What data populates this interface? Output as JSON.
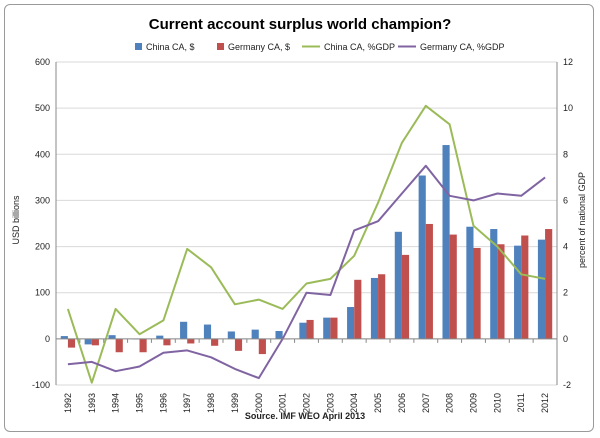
{
  "chart_data": {
    "type": "bar",
    "title": "Current account surplus world champion?",
    "xlabel": "Source. IMF WEO April 2013",
    "ylabel": "USD billions",
    "y2label": "percent of national GDP",
    "ylim": [
      -100,
      600
    ],
    "y2lim": [
      -2,
      12
    ],
    "yticks": [
      -100,
      0,
      100,
      200,
      300,
      400,
      500,
      600
    ],
    "y2ticks": [
      -2,
      0,
      2,
      4,
      6,
      8,
      10,
      12
    ],
    "categories": [
      "1992",
      "1993",
      "1994",
      "1995",
      "1996",
      "1997",
      "1998",
      "1999",
      "2000",
      "2001",
      "2002",
      "2003",
      "2004",
      "2005",
      "2006",
      "2007",
      "2008",
      "2009",
      "2010",
      "2011",
      "2012"
    ],
    "legend_position": "top",
    "bar_series": [
      {
        "name": "China CA, $",
        "color": "#4f81bd",
        "values": [
          6,
          -12,
          8,
          -1,
          7,
          37,
          31,
          16,
          20,
          17,
          35,
          46,
          69,
          132,
          232,
          354,
          420,
          243,
          238,
          202,
          215
        ]
      },
      {
        "name": "Germany CA, $",
        "color": "#c0504d",
        "values": [
          -19,
          -14,
          -29,
          -29,
          -14,
          -10,
          -15,
          -26,
          -33,
          0,
          41,
          46,
          128,
          140,
          182,
          249,
          226,
          197,
          205,
          224,
          238
        ]
      }
    ],
    "line_series": [
      {
        "name": "China CA, %GDP",
        "color": "#9bbb59",
        "axis": "secondary",
        "values": [
          1.3,
          -1.9,
          1.3,
          0.2,
          0.8,
          3.9,
          3.1,
          1.5,
          1.7,
          1.3,
          2.4,
          2.6,
          3.6,
          5.9,
          8.5,
          10.1,
          9.3,
          4.9,
          4.0,
          2.8,
          2.6
        ]
      },
      {
        "name": "Germany CA, %GDP",
        "color": "#8064a2",
        "axis": "secondary",
        "values": [
          -1.1,
          -1.0,
          -1.4,
          -1.2,
          -0.6,
          -0.5,
          -0.8,
          -1.3,
          -1.7,
          0.0,
          2.0,
          1.9,
          4.7,
          5.1,
          6.3,
          7.5,
          6.2,
          6.0,
          6.3,
          6.2,
          7.0
        ]
      }
    ]
  }
}
